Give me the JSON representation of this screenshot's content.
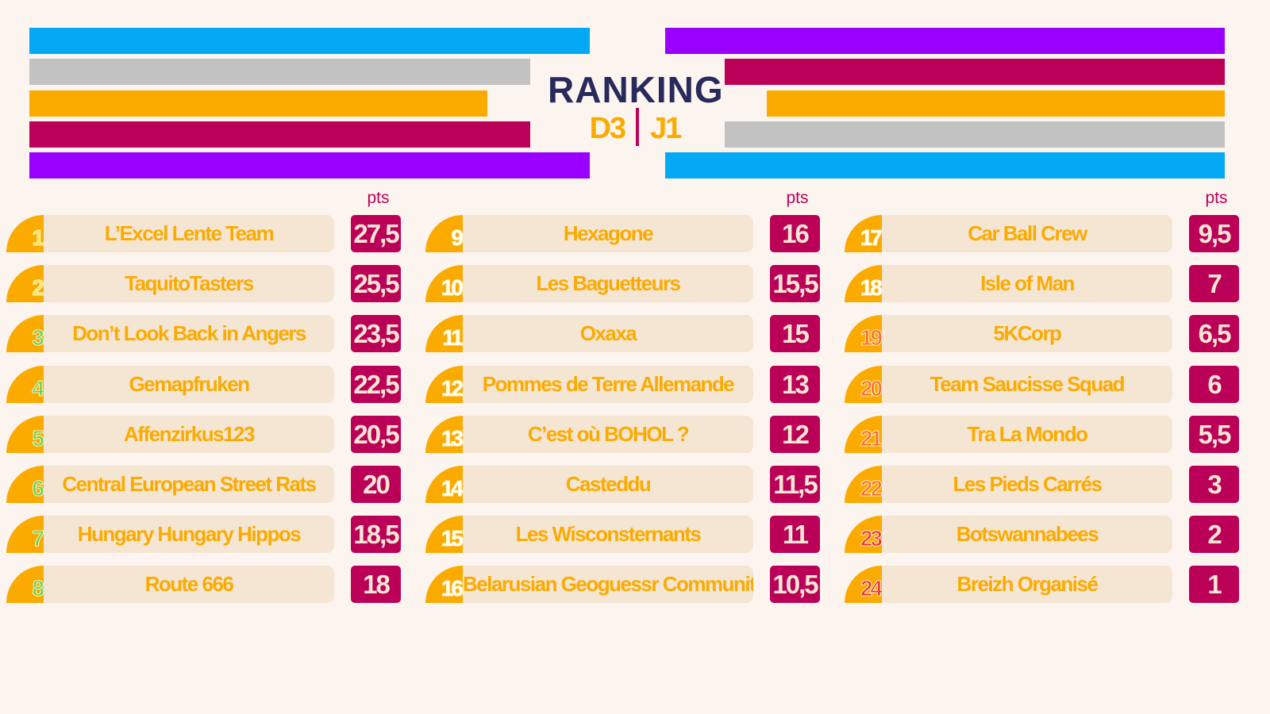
{
  "header": {
    "title": "RANKING",
    "division": "D3",
    "matchday": "J1"
  },
  "colors": {
    "blue": "#03a9f4",
    "gray": "#c2c2c2",
    "yellow": "#fbab00",
    "crimson": "#bb0058",
    "purple": "#9900ff",
    "navy": "#282a5c"
  },
  "pts_label": "pts",
  "columns": [
    {
      "rows": [
        {
          "rank": "1",
          "team": "L’Excel Lente Team",
          "points": "27,5",
          "rank_color": "#fde35a"
        },
        {
          "rank": "2",
          "team": "TaquitoTasters",
          "points": "25,5",
          "rank_color": "#fde35a"
        },
        {
          "rank": "3",
          "team": "Don’t Look Back in Angers",
          "points": "23,5",
          "rank_color": "#6fd35a"
        },
        {
          "rank": "4",
          "team": "Gemapfruken",
          "points": "22,5",
          "rank_color": "#6fd35a"
        },
        {
          "rank": "5",
          "team": "Affenzirkus123",
          "points": "20,5",
          "rank_color": "#6fd35a"
        },
        {
          "rank": "6",
          "team": "Central European Street Rats",
          "points": "20",
          "rank_color": "#6fd35a"
        },
        {
          "rank": "7",
          "team": "Hungary Hungary Hippos",
          "points": "18,5",
          "rank_color": "#6fd35a"
        },
        {
          "rank": "8",
          "team": "Route 666",
          "points": "18",
          "rank_color": "#6fd35a"
        }
      ]
    },
    {
      "rows": [
        {
          "rank": "9",
          "team": "Hexagone",
          "points": "16",
          "rank_color": "#ffffff"
        },
        {
          "rank": "10",
          "team": "Les Baguetteurs",
          "points": "15,5",
          "rank_color": "#ffffff"
        },
        {
          "rank": "11",
          "team": "Oxaxa",
          "points": "15",
          "rank_color": "#ffffff"
        },
        {
          "rank": "12",
          "team": "Pommes de Terre Allemande",
          "points": "13",
          "rank_color": "#ffffff"
        },
        {
          "rank": "13",
          "team": "C’est où BOHOL ?",
          "points": "12",
          "rank_color": "#ffffff"
        },
        {
          "rank": "14",
          "team": "Casteddu",
          "points": "11,5",
          "rank_color": "#ffffff"
        },
        {
          "rank": "15",
          "team": "Les Wisconsternants",
          "points": "11",
          "rank_color": "#ffffff"
        },
        {
          "rank": "16",
          "team": "Belarusian Geoguessr Community",
          "points": "10,5",
          "rank_color": "#ffffff"
        }
      ]
    },
    {
      "rows": [
        {
          "rank": "17",
          "team": "Car Ball Crew",
          "points": "9,5",
          "rank_color": "#ffffff"
        },
        {
          "rank": "18",
          "team": "Isle of Man",
          "points": "7",
          "rank_color": "#ffffff"
        },
        {
          "rank": "19",
          "team": "5KCorp",
          "points": "6,5",
          "rank_color": "#ff6a2a"
        },
        {
          "rank": "20",
          "team": "Team Saucisse Squad",
          "points": "6",
          "rank_color": "#ff6a2a"
        },
        {
          "rank": "21",
          "team": "Tra La Mondo",
          "points": "5,5",
          "rank_color": "#ff6a2a"
        },
        {
          "rank": "22",
          "team": "Les Pieds Carrés",
          "points": "3",
          "rank_color": "#ff6a2a"
        },
        {
          "rank": "23",
          "team": "Botswannabees",
          "points": "2",
          "rank_color": "#f5303a"
        },
        {
          "rank": "24",
          "team": "Breizh Organisé",
          "points": "1",
          "rank_color": "#f5303a"
        }
      ]
    }
  ]
}
